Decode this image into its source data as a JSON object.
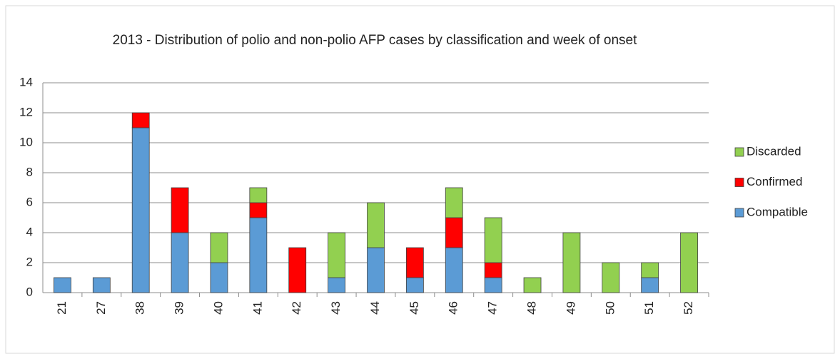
{
  "chart_data": {
    "type": "bar",
    "stacked": true,
    "title": "2013 - Distribution of polio and non-polio AFP cases by classification and week of onset",
    "categories": [
      "21",
      "27",
      "38",
      "39",
      "40",
      "41",
      "42",
      "43",
      "44",
      "45",
      "46",
      "47",
      "48",
      "49",
      "50",
      "51",
      "52"
    ],
    "series": [
      {
        "name": "Compatible",
        "color": "#5b9bd5",
        "values": [
          1,
          1,
          11,
          4,
          2,
          5,
          0,
          1,
          3,
          1,
          3,
          1,
          0,
          0,
          0,
          1,
          0
        ]
      },
      {
        "name": "Confirmed",
        "color": "#ff0000",
        "values": [
          0,
          0,
          1,
          3,
          0,
          1,
          3,
          0,
          0,
          2,
          2,
          1,
          0,
          0,
          0,
          0,
          0
        ]
      },
      {
        "name": "Discarded",
        "color": "#92d050",
        "values": [
          0,
          0,
          0,
          0,
          2,
          1,
          0,
          3,
          3,
          0,
          2,
          3,
          1,
          4,
          2,
          1,
          4
        ]
      }
    ],
    "ylim": [
      0,
      14
    ],
    "yticks": [
      0,
      2,
      4,
      6,
      8,
      10,
      12,
      14
    ],
    "grid": true,
    "legend": "right"
  }
}
